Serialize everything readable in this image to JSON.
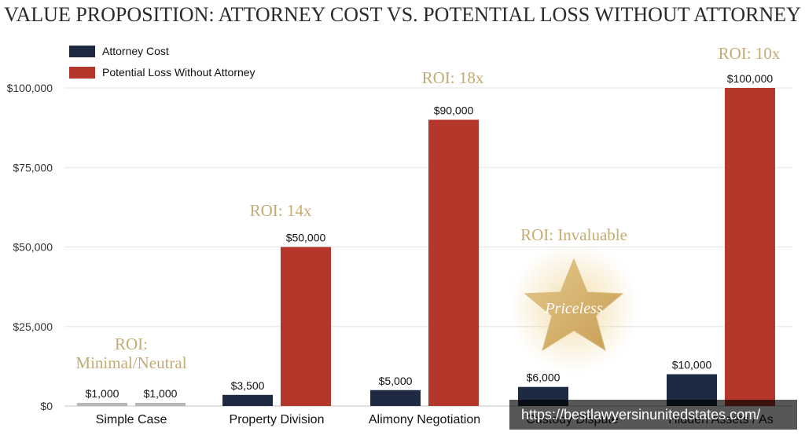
{
  "chart_data": {
    "type": "bar",
    "title": "VALUE PROPOSITION: ATTORNEY COST VS. POTENTIAL LOSS WITHOUT ATTORNEY",
    "categories": [
      "Simple Case",
      "Property Division",
      "Alimony Negotiation",
      "Custody Dispute",
      "Hidden Assets / As"
    ],
    "series": [
      {
        "name": "Attorney Cost",
        "values": [
          1000,
          3500,
          5000,
          6000,
          10000
        ],
        "labels": [
          "$1,000",
          "$3,500",
          "$5,000",
          "$6,000",
          "$10,000"
        ]
      },
      {
        "name": "Potential Loss Without Attorney",
        "values": [
          1000,
          50000,
          90000,
          null,
          100000
        ],
        "labels": [
          "$1,000",
          "$50,000",
          "$90,000",
          "",
          "$100,000"
        ]
      }
    ],
    "colors": {
      "attorney_cost": "#1d2a41",
      "potential_loss": "#b5362b",
      "simple_case": "#b7b7b7",
      "roi_text": "#c4ab74",
      "star": "#d4b06b",
      "grid": "#e3e3e3",
      "axis": "#cfcfcf",
      "tick_text": "#333333",
      "category_text": "#111111",
      "title_text": "#2a2a2a"
    },
    "ylim": [
      0,
      100000
    ],
    "yticks": [
      0,
      25000,
      50000,
      75000,
      100000
    ],
    "ytick_labels": [
      "$0",
      "$25,000",
      "$50,000",
      "$75,000",
      "$100,000"
    ],
    "grid": true,
    "legend_position": "top-left",
    "annotations": [
      {
        "category_index": 0,
        "lines": [
          "ROI:",
          "Minimal/Neutral"
        ]
      },
      {
        "category_index": 1,
        "lines": [
          "ROI: 14x"
        ]
      },
      {
        "category_index": 2,
        "lines": [
          "ROI: 18x"
        ]
      },
      {
        "category_index": 3,
        "lines": [
          "ROI: Invaluable"
        ]
      },
      {
        "category_index": 4,
        "lines": [
          "ROI: 10x"
        ]
      }
    ],
    "custody_badge": {
      "icon": "star-icon",
      "text": "Priceless"
    }
  },
  "watermark": "https://bestlawyersinunitedstates.com/"
}
